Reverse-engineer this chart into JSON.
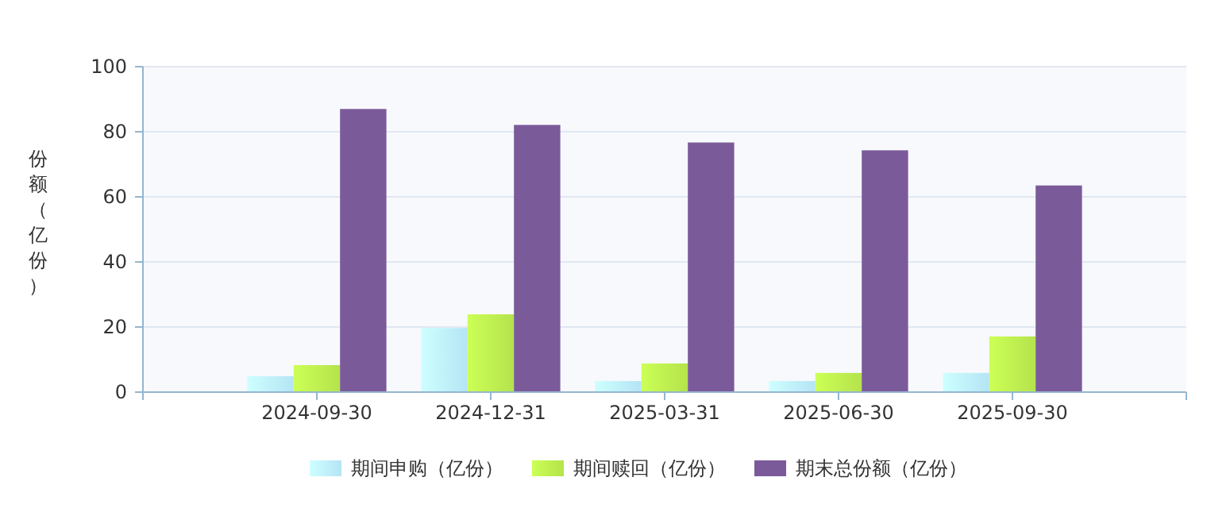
{
  "chart_data": {
    "type": "bar",
    "ylabel": "份额（亿份）",
    "categories": [
      "2024-09-30",
      "2024-12-31",
      "2025-03-31",
      "2025-06-30",
      "2025-09-30"
    ],
    "series": [
      {
        "name": "期间申购（亿份）",
        "color": "#b5e4f4",
        "values": [
          4.9,
          19.7,
          3.4,
          3.4,
          5.9
        ]
      },
      {
        "name": "期间赎回（亿份）",
        "color": "#b4e34c",
        "values": [
          8.3,
          23.9,
          8.8,
          5.9,
          17.1
        ]
      },
      {
        "name": "期末总份额（亿份）",
        "color": "#7b5a9a",
        "values": [
          87.0,
          82.1,
          76.7,
          74.3,
          63.5
        ]
      }
    ],
    "ylim": [
      0,
      100
    ],
    "yticks": [
      0,
      20,
      40,
      60,
      80,
      100
    ],
    "grid": "y",
    "legend": "bottom"
  }
}
